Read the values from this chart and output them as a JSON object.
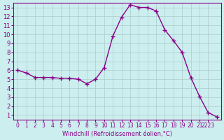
{
  "x": [
    0,
    1,
    2,
    3,
    4,
    5,
    6,
    7,
    8,
    9,
    10,
    11,
    12,
    13,
    14,
    15,
    16,
    17,
    18,
    19,
    20,
    21,
    22,
    23
  ],
  "y": [
    6.0,
    5.7,
    5.2,
    5.2,
    5.2,
    5.1,
    5.1,
    5.0,
    4.5,
    5.0,
    6.3,
    9.8,
    11.9,
    13.3,
    13.0,
    13.0,
    12.6,
    10.5,
    9.3,
    8.0,
    5.2,
    3.1,
    1.3,
    0.8
  ],
  "line_color": "#880088",
  "marker": "+",
  "marker_size": 4,
  "line_width": 1.0,
  "bg_color": "#cceeee",
  "grid_color": "#aacccc",
  "xlabel": "Windchill (Refroidissement éolien,°C)",
  "xlabel_color": "#880088",
  "axis_color": "#880088",
  "tick_color": "#880088",
  "ylim": [
    0.5,
    13.5
  ],
  "xlim": [
    -0.5,
    23.5
  ],
  "yticks": [
    1,
    2,
    3,
    4,
    5,
    6,
    7,
    8,
    9,
    10,
    11,
    12,
    13
  ],
  "xtick_positions": [
    0,
    1,
    2,
    3,
    4,
    5,
    6,
    7,
    8,
    9,
    10,
    11,
    12,
    13,
    14,
    15,
    16,
    17,
    18,
    19,
    20,
    21,
    22
  ],
  "xtick_labels": [
    "0",
    "1",
    "2",
    "3",
    "4",
    "5",
    "6",
    "7",
    "8",
    "9",
    "10",
    "11",
    "12",
    "13",
    "14",
    "15",
    "16",
    "17",
    "18",
    "19",
    "20",
    "21",
    "2223"
  ],
  "font_size": 6
}
